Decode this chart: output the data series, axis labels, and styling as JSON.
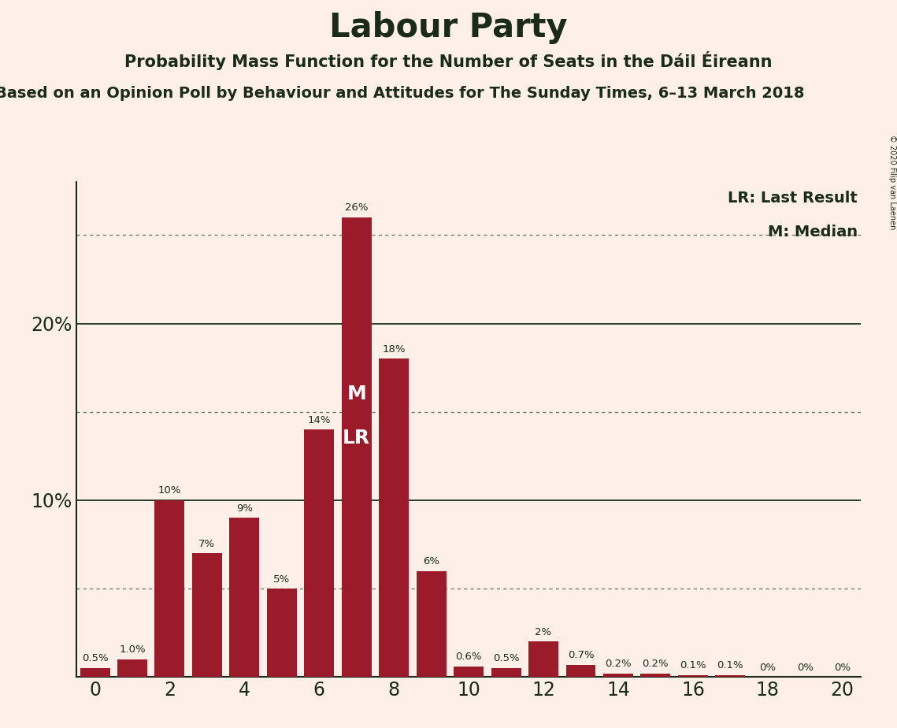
{
  "title": "Labour Party",
  "subtitle": "Probability Mass Function for the Number of Seats in the Dáil Éireann",
  "source": "Based on an Opinion Poll by Behaviour and Attitudes for The Sunday Times, 6–13 March 2018",
  "copyright": "© 2020 Filip van Laenen",
  "seats": [
    0,
    1,
    2,
    3,
    4,
    5,
    6,
    7,
    8,
    9,
    10,
    11,
    12,
    13,
    14,
    15,
    16,
    17,
    18,
    19,
    20
  ],
  "probabilities": [
    0.5,
    1.0,
    10.0,
    7.0,
    9.0,
    5.0,
    14.0,
    26.0,
    18.0,
    6.0,
    0.6,
    0.5,
    2.0,
    0.7,
    0.2,
    0.2,
    0.1,
    0.1,
    0.0,
    0.0,
    0.0
  ],
  "bar_labels": [
    "0.5%",
    "1.0%",
    "10%",
    "7%",
    "9%",
    "5%",
    "14%",
    "26%",
    "18%",
    "6%",
    "0.6%",
    "0.5%",
    "2%",
    "0.7%",
    "0.2%",
    "0.2%",
    "0.1%",
    "0.1%",
    "0%",
    "0%",
    "0%"
  ],
  "bar_color": "#9B1B2A",
  "background_color": "#FEF0E8",
  "text_color": "#1A2B1A",
  "median": 7,
  "last_result": 7,
  "legend_lr": "LR: Last Result",
  "legend_m": "M: Median",
  "solid_gridlines": [
    10,
    20
  ],
  "dotted_gridlines": [
    5,
    15,
    25
  ],
  "xlim": [
    -0.5,
    20.5
  ],
  "ylim": [
    0,
    28
  ]
}
